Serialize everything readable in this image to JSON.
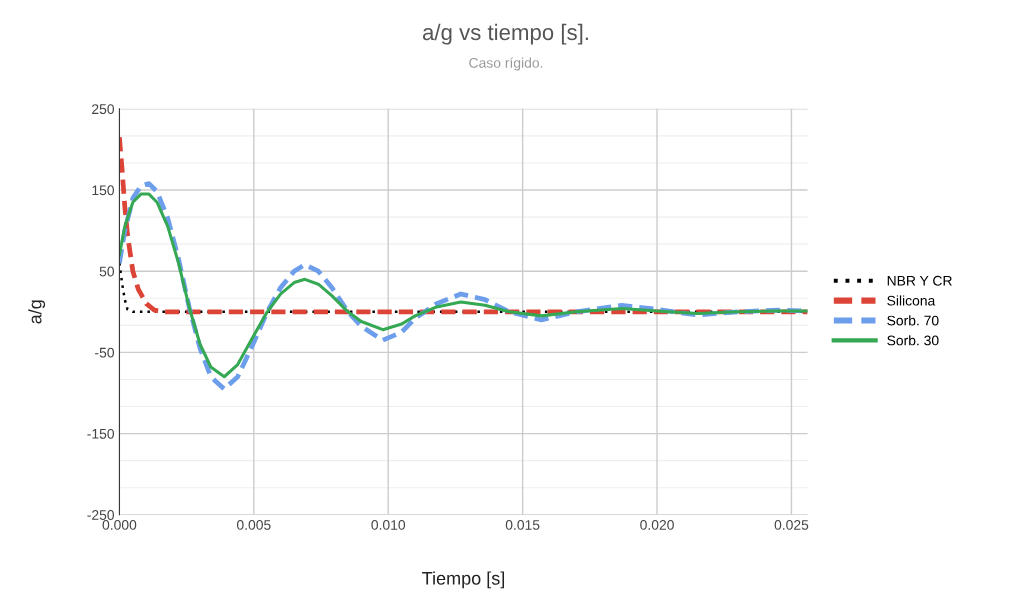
{
  "chart_data": {
    "type": "line",
    "title": "a/g vs tiempo [s].",
    "subtitle": "Caso rígido.",
    "xlabel": "Tiempo [s]",
    "ylabel": "a/g",
    "xlim": [
      0,
      0.0256
    ],
    "xticks": [
      {
        "value": 0,
        "label": "0.000"
      },
      {
        "value": 0.005,
        "label": "0.005"
      },
      {
        "value": 0.01,
        "label": "0.010"
      },
      {
        "value": 0.015,
        "label": "0.015"
      },
      {
        "value": 0.02,
        "label": "0.020"
      },
      {
        "value": 0.025,
        "label": "0.025"
      }
    ],
    "ylim": [
      -250,
      250
    ],
    "yticks": [
      -250,
      -150,
      -50,
      50,
      150,
      250
    ],
    "grid": true,
    "legend": "right",
    "marker": "none",
    "series": [
      {
        "name": "NBR Y CR",
        "color": "#000000",
        "line_style": "dotted",
        "x": [
          0,
          0.0001,
          0.0002,
          0.0003,
          0.0005,
          0.0256
        ],
        "values": [
          60,
          35,
          15,
          3,
          0,
          0
        ]
      },
      {
        "name": "Silicona",
        "color": "#db4437",
        "line_style": "dashed",
        "x": [
          0,
          0.0001,
          0.0002,
          0.0003,
          0.0005,
          0.0007,
          0.001,
          0.0013,
          0.0016,
          0.0256
        ],
        "values": [
          215,
          175,
          130,
          95,
          50,
          28,
          10,
          2,
          0,
          0
        ]
      },
      {
        "name": "Sorb. 70",
        "color": "#6d9eeb",
        "line_style": "dashed",
        "x": [
          0,
          0.0002,
          0.0005,
          0.0008,
          0.0011,
          0.0014,
          0.0018,
          0.0022,
          0.0026,
          0.003,
          0.0034,
          0.0039,
          0.0044,
          0.0049,
          0.0055,
          0.006,
          0.0065,
          0.0069,
          0.0074,
          0.0079,
          0.0085,
          0.009,
          0.0098,
          0.0105,
          0.011,
          0.0118,
          0.0127,
          0.0136,
          0.0145,
          0.0157,
          0.017,
          0.0187,
          0.02,
          0.0215,
          0.023,
          0.0245,
          0.0256
        ],
        "values": [
          60,
          100,
          140,
          155,
          158,
          148,
          115,
          65,
          5,
          -45,
          -80,
          -95,
          -80,
          -45,
          0,
          30,
          50,
          58,
          50,
          30,
          0,
          -18,
          -35,
          -25,
          -8,
          10,
          22,
          15,
          0,
          -10,
          0,
          8,
          3,
          -4,
          0,
          2,
          1
        ]
      },
      {
        "name": "Sorb. 30",
        "color": "#34a853",
        "line_style": "solid",
        "x": [
          0,
          0.0002,
          0.0005,
          0.0008,
          0.0011,
          0.0014,
          0.0018,
          0.0022,
          0.0026,
          0.003,
          0.0034,
          0.0039,
          0.0044,
          0.0049,
          0.0055,
          0.006,
          0.0065,
          0.0069,
          0.0074,
          0.0079,
          0.0085,
          0.009,
          0.0098,
          0.0105,
          0.011,
          0.0118,
          0.0127,
          0.0136,
          0.0145,
          0.0157,
          0.017,
          0.0187,
          0.02,
          0.0215,
          0.023,
          0.0245,
          0.0256
        ],
        "values": [
          70,
          105,
          135,
          145,
          145,
          135,
          105,
          60,
          5,
          -40,
          -68,
          -80,
          -65,
          -35,
          0,
          22,
          36,
          40,
          34,
          20,
          0,
          -12,
          -22,
          -15,
          -5,
          6,
          12,
          8,
          0,
          -5,
          0,
          4,
          1,
          -2,
          0,
          1,
          1
        ]
      }
    ]
  }
}
